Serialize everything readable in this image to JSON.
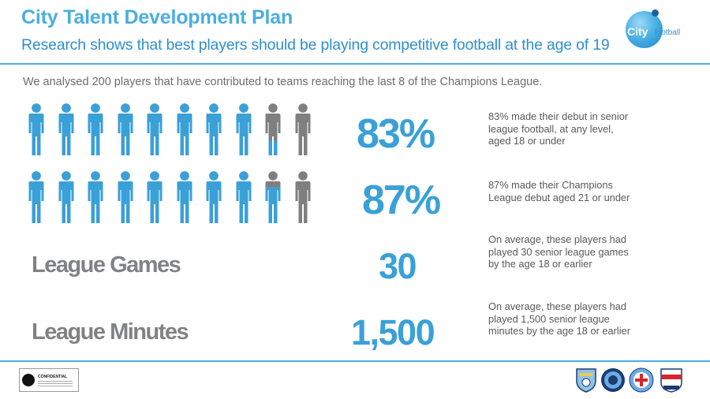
{
  "header": {
    "title": "City Talent Development Plan",
    "subtitle": "Research shows that best players should be playing competitive football at the age of 19"
  },
  "logo": {
    "city": "City",
    "football": "football"
  },
  "intro": "We analysed 200 players that have contributed to teams reaching the last 8 of the Champions League.",
  "stats": [
    {
      "value": "83%",
      "fill": 0.83,
      "description": "83% made their debut in senior league football, at any level, aged 18 or under"
    },
    {
      "value": "87%",
      "fill": 0.87,
      "description": "87% made their Champions League debut aged 21 or under"
    },
    {
      "label": "League Games",
      "value": "30",
      "description": "On average, these players had played 30 senior league games by the age 18 or earlier"
    },
    {
      "label": "League Minutes",
      "value": "1,500",
      "description": "On average, these players had played 1,500 senior league minutes by the age 18 or earlier"
    }
  ],
  "footer": {
    "confidential": "CONFIDENTIAL"
  },
  "colors": {
    "accent": "#3aa0d8",
    "title": "#4aaee0",
    "figure_filled": "#3aa0d8",
    "figure_empty": "#7f7f7f",
    "label_gray": "#808285"
  }
}
